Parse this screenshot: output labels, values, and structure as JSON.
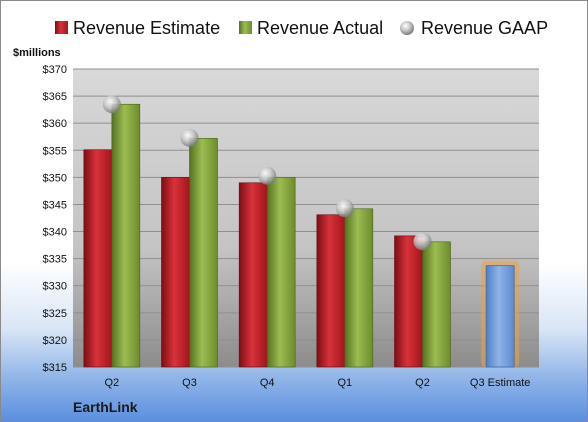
{
  "company": "EarthLink",
  "colors": {
    "estimate": "#c0202a",
    "actual": "#86a53e",
    "gaap": "#b8b8b8",
    "q3_estimate": "#6f9bd6",
    "q3_glow": "#f0a040"
  },
  "chart_data": {
    "type": "bar",
    "title": "",
    "xlabel": "",
    "ylabel": "$millions",
    "ylim": [
      315,
      370
    ],
    "yticks": [
      "$315",
      "$320",
      "$325",
      "$330",
      "$335",
      "$340",
      "$345",
      "$350",
      "$355",
      "$360",
      "$365",
      "$370"
    ],
    "ytick_values": [
      315,
      320,
      325,
      330,
      335,
      340,
      345,
      350,
      355,
      360,
      365,
      370
    ],
    "categories": [
      "Q2",
      "Q3",
      "Q4",
      "Q1",
      "Q2",
      "Q3 Estimate"
    ],
    "legend_position": "top",
    "grid": true,
    "series": [
      {
        "name": "Revenue Estimate",
        "kind": "bar",
        "values": [
          355.1,
          350.0,
          349.0,
          343.1,
          339.2,
          333.7
        ]
      },
      {
        "name": "Revenue Actual",
        "kind": "bar",
        "values": [
          363.5,
          357.2,
          350.0,
          344.2,
          338.1,
          null
        ]
      },
      {
        "name": "Revenue GAAP",
        "kind": "marker",
        "values": [
          363.5,
          357.3,
          350.3,
          344.3,
          338.2,
          null
        ]
      }
    ]
  }
}
